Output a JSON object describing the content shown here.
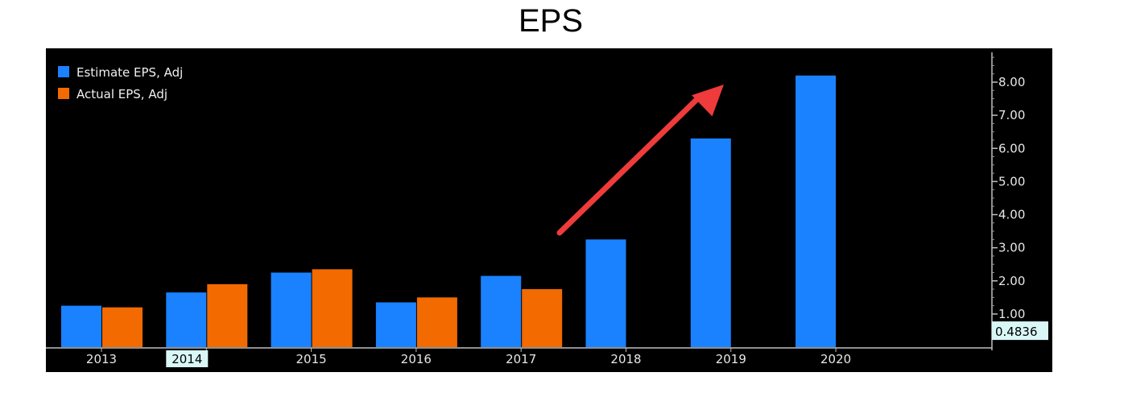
{
  "title": "EPS",
  "colors": {
    "background": "#000000",
    "estimate": "#1a82ff",
    "actual": "#f26a00",
    "arrow": "#ef3b3b",
    "badge": "#d9f7f7"
  },
  "chart_data": {
    "type": "bar",
    "title": "EPS",
    "xlabel": "",
    "ylabel": "",
    "categories": [
      "2013",
      "2014",
      "2015",
      "2016",
      "2017",
      "2018",
      "2019",
      "2020"
    ],
    "series": [
      {
        "name": "Estimate EPS, Adj",
        "values": [
          1.25,
          1.65,
          2.25,
          1.35,
          2.15,
          3.25,
          6.3,
          8.2
        ]
      },
      {
        "name": "Actual EPS, Adj",
        "values": [
          1.2,
          1.9,
          2.35,
          1.5,
          1.75,
          null,
          null,
          null
        ]
      }
    ],
    "ylim": [
      0,
      8.9
    ],
    "y_ticks": [
      "1.00",
      "2.00",
      "3.00",
      "4.00",
      "5.00",
      "6.00",
      "7.00",
      "8.00"
    ],
    "y_axis_position": "right",
    "legend_position": "top-left",
    "grid": false,
    "annotations": {
      "highlighted_category": "2014",
      "axis_badge": "0.4836",
      "arrow": "upward trend from 2017 toward 2019"
    }
  }
}
